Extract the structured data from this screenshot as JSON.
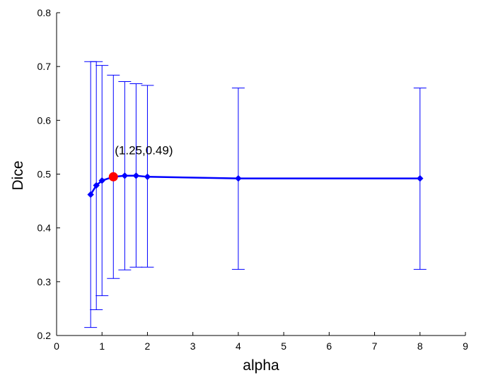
{
  "chart_data": {
    "type": "line",
    "xlabel": "alpha",
    "ylabel": "Dice",
    "xlim": [
      0,
      9
    ],
    "ylim": [
      0.2,
      0.8
    ],
    "xticks": [
      0,
      1,
      2,
      3,
      4,
      5,
      6,
      7,
      8,
      9
    ],
    "yticks": [
      0.2,
      0.3,
      0.4,
      0.5,
      0.6,
      0.7,
      0.8
    ],
    "grid": false,
    "series": [
      {
        "color": "#0000ff",
        "points": [
          {
            "x": 0.75,
            "y": 0.462,
            "lower": 0.215,
            "upper": 0.709
          },
          {
            "x": 0.875,
            "y": 0.479,
            "lower": 0.248,
            "upper": 0.709
          },
          {
            "x": 1.0,
            "y": 0.488,
            "lower": 0.274,
            "upper": 0.702
          },
          {
            "x": 1.25,
            "y": 0.495,
            "lower": 0.306,
            "upper": 0.684
          },
          {
            "x": 1.5,
            "y": 0.497,
            "lower": 0.322,
            "upper": 0.672
          },
          {
            "x": 1.75,
            "y": 0.497,
            "lower": 0.327,
            "upper": 0.668
          },
          {
            "x": 2.0,
            "y": 0.495,
            "lower": 0.327,
            "upper": 0.665
          },
          {
            "x": 4.0,
            "y": 0.492,
            "lower": 0.323,
            "upper": 0.66
          },
          {
            "x": 8.0,
            "y": 0.492,
            "lower": 0.323,
            "upper": 0.66
          }
        ]
      }
    ],
    "highlight": {
      "x": 1.25,
      "y": 0.495,
      "color": "#ff0000",
      "label": "(1.25,0.49)"
    }
  }
}
